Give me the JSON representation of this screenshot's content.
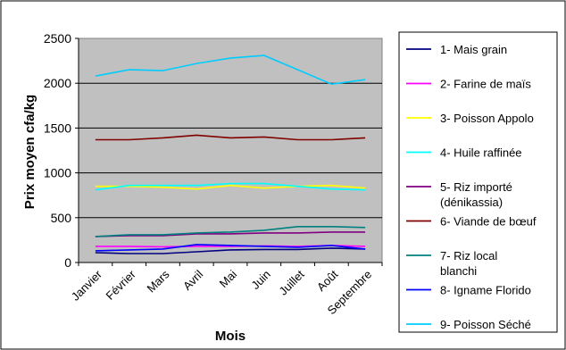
{
  "chart_data": {
    "type": "line",
    "xlabel": "Mois",
    "ylabel": "Prix moyen cfa/kg",
    "categories": [
      "Janvier",
      "Février",
      "Mars",
      "Avril",
      "Mai",
      "Juin",
      "Juillet",
      "Août",
      "Septembre"
    ],
    "ylim": [
      0,
      2500
    ],
    "yticks": [
      0,
      500,
      1000,
      1500,
      2000,
      2500
    ],
    "grid": "horizontal",
    "legend_position": "right",
    "plot_background": "#c0c0c0",
    "series": [
      {
        "name": "1- Mais grain",
        "color": "#000080",
        "values": [
          110,
          100,
          100,
          120,
          140,
          145,
          145,
          160,
          150
        ]
      },
      {
        "name": "2- Farine de maïs",
        "color": "#ff00ff",
        "values": [
          180,
          180,
          175,
          180,
          180,
          185,
          180,
          190,
          180
        ]
      },
      {
        "name": "3- Poisson Appolo",
        "color": "#ffff00",
        "values": [
          850,
          850,
          840,
          820,
          860,
          830,
          850,
          860,
          830
        ]
      },
      {
        "name": "4- Huile raffinée",
        "color": "#00ffff",
        "values": [
          810,
          860,
          860,
          860,
          880,
          880,
          850,
          820,
          810
        ]
      },
      {
        "name": "5- Riz importé (dénikassia)",
        "color": "#800080",
        "values": [
          290,
          300,
          300,
          320,
          320,
          330,
          330,
          340,
          340
        ]
      },
      {
        "name": "6- Viande de bœuf",
        "color": "#800000",
        "values": [
          1370,
          1370,
          1390,
          1420,
          1390,
          1400,
          1370,
          1370,
          1390
        ]
      },
      {
        "name": "7- Riz local blanchi",
        "color": "#008080",
        "values": [
          290,
          310,
          310,
          330,
          340,
          360,
          400,
          400,
          390
        ]
      },
      {
        "name": "8- Igname Florido",
        "color": "#0000ff",
        "values": [
          130,
          140,
          150,
          200,
          190,
          180,
          170,
          190,
          150
        ]
      },
      {
        "name": "9- Poisson Séché",
        "color": "#00ccff",
        "values": [
          2080,
          2150,
          2140,
          2220,
          2280,
          2310,
          2150,
          1990,
          2040
        ]
      }
    ]
  }
}
